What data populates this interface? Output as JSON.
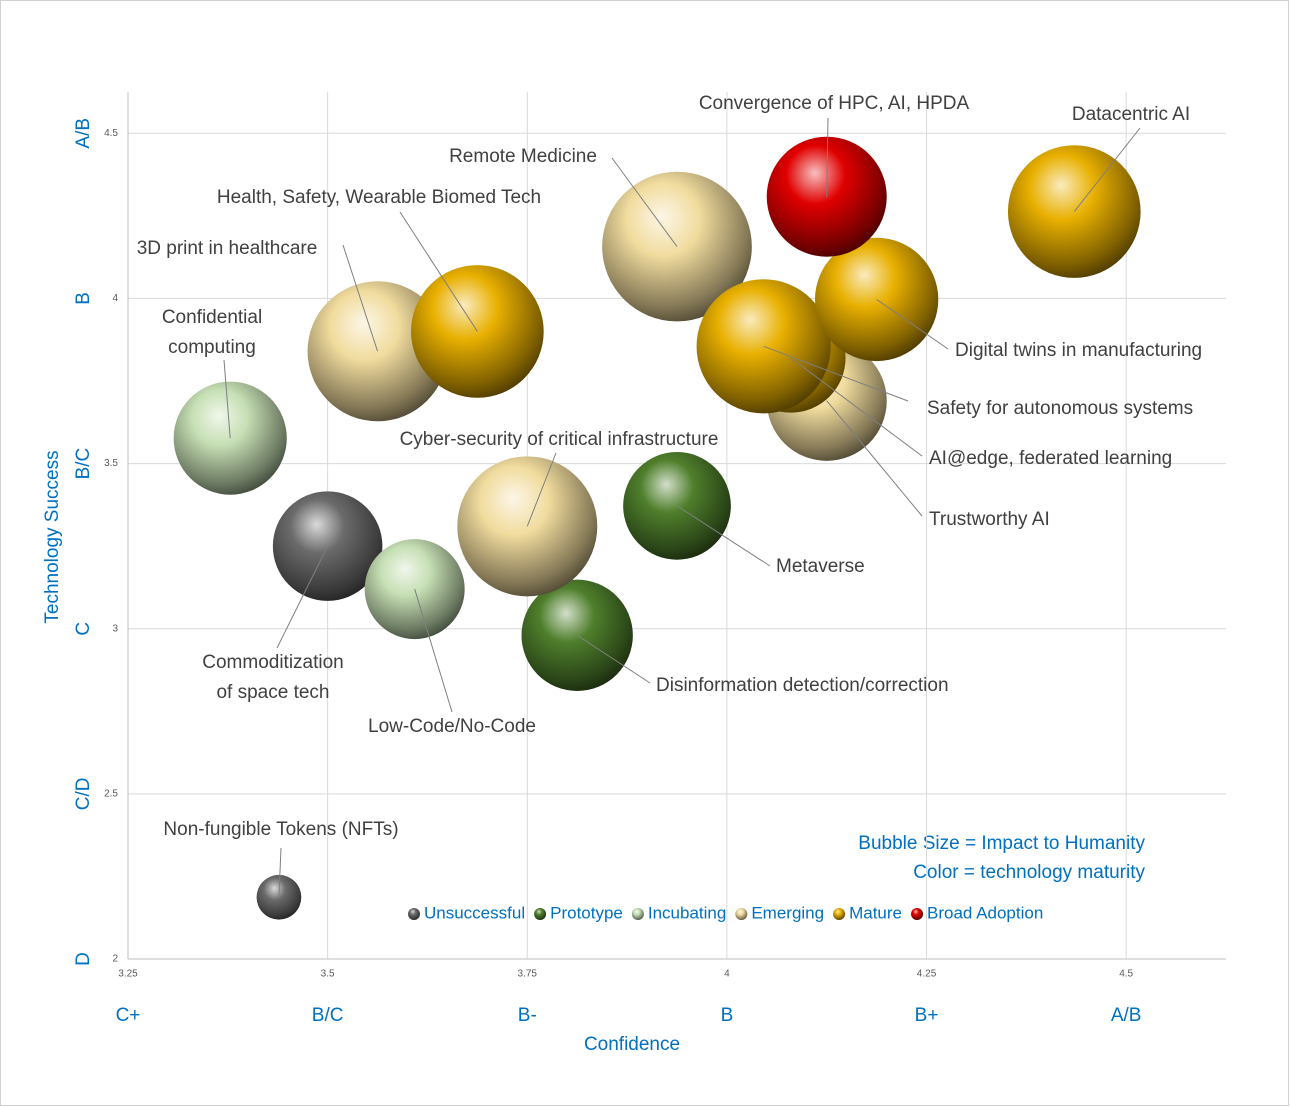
{
  "chart_data": {
    "type": "bubble",
    "xlabel": "Confidence",
    "ylabel": "Technology Success",
    "xlim": [
      3.25,
      4.625
    ],
    "ylim": [
      2,
      4.625
    ],
    "xticks": [
      3.25,
      3.5,
      3.75,
      4,
      4.25,
      4.5
    ],
    "yticks": [
      2,
      2.5,
      3,
      3.5,
      4,
      4.5
    ],
    "x_grade_labels": [
      "C+",
      "B/C",
      "B-",
      "B",
      "B+",
      "A/B"
    ],
    "y_grade_labels": [
      "D",
      "C/D",
      "C",
      "B/C",
      "B",
      "A/B"
    ],
    "grid": true,
    "annotations": [
      "Bubble Size = Impact to Humanity",
      "Color = technology maturity"
    ],
    "series": [
      {
        "name": "Unsuccessful",
        "color": "#6b6b6b",
        "x": [
          3.5,
          3.439
        ],
        "y": [
          3.25,
          2.187
        ],
        "sizes": [
          30,
          5
        ],
        "labels": [
          [
            "Commoditization",
            "of space tech"
          ],
          "Non-fungible Tokens (NFTs)"
        ]
      },
      {
        "name": "Prototype",
        "color": "#4f7f2c",
        "x": [
          3.9375,
          3.8125
        ],
        "y": [
          3.372,
          2.98
        ],
        "sizes": [
          29,
          31
        ],
        "labels": [
          "Metaverse",
          "Disinformation detection/correction"
        ]
      },
      {
        "name": "Incubating",
        "color": "#c6dfb4",
        "x": [
          3.378,
          3.609
        ],
        "y": [
          3.577,
          3.12
        ],
        "sizes": [
          32,
          25
        ],
        "labels": [
          [
            "Confidential",
            "computing"
          ],
          "Low-Code/No-Code"
        ]
      },
      {
        "name": "Emerging",
        "color": "#f1dc9e",
        "x": [
          3.9375,
          3.5625,
          3.75,
          4.125
        ],
        "y": [
          4.157,
          3.84,
          3.31,
          3.69
        ],
        "sizes": [
          56,
          49,
          49,
          36
        ],
        "labels": [
          "Remote Medicine",
          "3D print in healthcare",
          "Cyber-security of critical infrastructure",
          "Trustworthy AI"
        ]
      },
      {
        "name": "Mature",
        "color": "#e8b000",
        "x": [
          4.435,
          4.08,
          4.046,
          4.1875,
          3.6875
        ],
        "y": [
          4.263,
          3.82,
          3.855,
          3.997,
          3.9
        ],
        "sizes": [
          44,
          30,
          45,
          38,
          44
        ],
        "labels": [
          "Datacentric AI",
          "AI@edge, federated learning",
          "Safety for autonomous systems",
          "Digital twins in manufacturing",
          "Health, Safety, Wearable Biomed Tech"
        ]
      },
      {
        "name": "Broad Adoption",
        "color": "#e00000",
        "x": [
          4.125
        ],
        "y": [
          4.308
        ],
        "sizes": [
          36
        ],
        "labels": [
          "Convergence of HPC, AI, HPDA"
        ]
      }
    ]
  }
}
